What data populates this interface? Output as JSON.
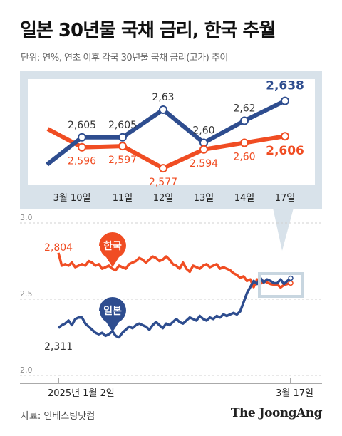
{
  "header": {
    "title": "일본 30년물 국채 금리, 한국 추월",
    "subtitle": "단위: 연%, 연초 이후 각국 30년물 국채 금리(고가) 추이"
  },
  "footer": {
    "source": "자료: 인베스팅닷컴",
    "brand": "The JoongAng"
  },
  "colors": {
    "korea": "#f04d23",
    "japan": "#2e4d8f",
    "panel": "#d8e2ea",
    "axis": "#999999"
  },
  "chart_data": [
    {
      "type": "line",
      "title": "",
      "categories": [
        "3월 10일",
        "11일",
        "12일",
        "13일",
        "14일",
        "17일"
      ],
      "series": [
        {
          "name": "일본",
          "values": [
            2.605,
            2.605,
            2.63,
            2.6,
            2.62,
            2.638
          ],
          "labels": [
            "2,605",
            "2,605",
            "2,63",
            "2,60",
            "2,62",
            "2,638"
          ]
        },
        {
          "name": "한국",
          "values": [
            2.596,
            2.597,
            2.577,
            2.594,
            2.6,
            2.606
          ],
          "labels": [
            "2,596",
            "2,597",
            "2,577",
            "2,594",
            "2,60",
            "2,606"
          ]
        }
      ]
    },
    {
      "type": "line",
      "ylim": [
        2.0,
        3.0
      ],
      "yticks": [
        3.0,
        2.5,
        2.0
      ],
      "ytick_labels": [
        "3.0",
        "2.5",
        "2.0"
      ],
      "x_labels": [
        "2025년 1월 2일",
        "3월 17일"
      ],
      "start_labels": {
        "korea": "2,804",
        "japan": "2,311"
      },
      "series": [
        {
          "name": "한국",
          "values": [
            2.804,
            2.72,
            2.73,
            2.72,
            2.74,
            2.71,
            2.72,
            2.73,
            2.72,
            2.75,
            2.74,
            2.72,
            2.73,
            2.7,
            2.71,
            2.72,
            2.7,
            2.69,
            2.72,
            2.71,
            2.7,
            2.73,
            2.74,
            2.75,
            2.77,
            2.76,
            2.74,
            2.76,
            2.78,
            2.77,
            2.75,
            2.76,
            2.78,
            2.76,
            2.73,
            2.72,
            2.7,
            2.74,
            2.7,
            2.68,
            2.72,
            2.71,
            2.7,
            2.72,
            2.73,
            2.71,
            2.72,
            2.73,
            2.7,
            2.71,
            2.7,
            2.69,
            2.67,
            2.66,
            2.64,
            2.65,
            2.62,
            2.63,
            2.58,
            2.63,
            2.6,
            2.62,
            2.61,
            2.6,
            2.596,
            2.597,
            2.577,
            2.594,
            2.6,
            2.606
          ]
        },
        {
          "name": "일본",
          "values": [
            2.311,
            2.33,
            2.34,
            2.36,
            2.33,
            2.37,
            2.38,
            2.38,
            2.34,
            2.32,
            2.3,
            2.28,
            2.27,
            2.28,
            2.26,
            2.27,
            2.29,
            2.26,
            2.25,
            2.28,
            2.3,
            2.32,
            2.31,
            2.33,
            2.34,
            2.33,
            2.32,
            2.3,
            2.33,
            2.35,
            2.33,
            2.31,
            2.34,
            2.33,
            2.35,
            2.37,
            2.35,
            2.34,
            2.36,
            2.38,
            2.37,
            2.36,
            2.39,
            2.37,
            2.36,
            2.38,
            2.37,
            2.39,
            2.38,
            2.4,
            2.39,
            2.4,
            2.41,
            2.4,
            2.42,
            2.48,
            2.54,
            2.58,
            2.62,
            2.6,
            2.64,
            2.61,
            2.63,
            2.62,
            2.605,
            2.605,
            2.63,
            2.6,
            2.62,
            2.638
          ]
        }
      ]
    }
  ]
}
